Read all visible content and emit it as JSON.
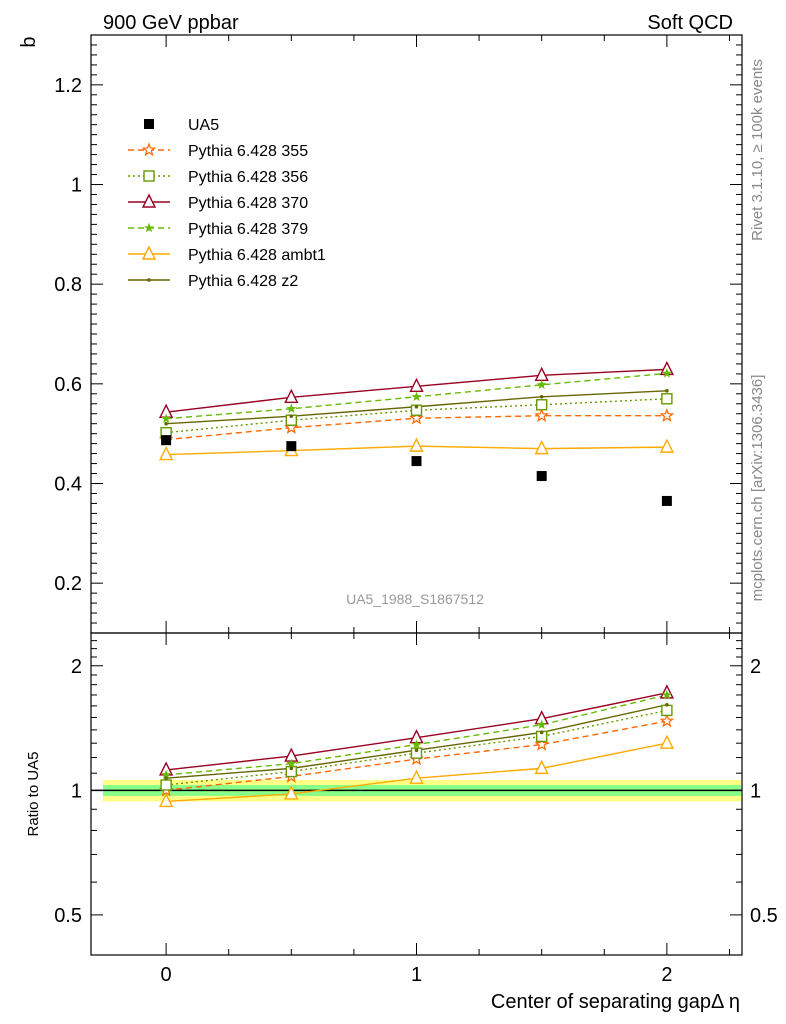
{
  "header": {
    "left_title": "900 GeV ppbar",
    "right_title": "Soft QCD"
  },
  "side_labels": {
    "rivet": "Rivet 3.1.10, ≥ 100k events",
    "mcplots": "mcplots.cern.ch [arXiv:1306.3436]"
  },
  "analysis_label": "UA5_1988_S1867512",
  "chart_data": [
    {
      "type": "line",
      "panel": "main",
      "ylabel": "b",
      "xlabel": "",
      "xlim": [
        -0.3,
        2.3
      ],
      "ylim": [
        0.1,
        1.3
      ],
      "x_ticks": [
        0,
        1,
        2
      ],
      "y_ticks": [
        0.2,
        0.4,
        0.6,
        0.8,
        1,
        1.2
      ],
      "y_tick_labels": [
        "0.2",
        "0.4",
        "0.6",
        "0.8",
        "1",
        "1.2"
      ],
      "legend_position": "top-left",
      "x": [
        0,
        0.5,
        1,
        1.5,
        2
      ],
      "data": {
        "name": "UA5",
        "values": [
          0.487,
          0.475,
          0.445,
          0.415,
          0.365
        ],
        "color": "#000000",
        "marker": "square"
      },
      "series": [
        {
          "name": "Pythia 6.428 355",
          "values": [
            0.488,
            0.512,
            0.531,
            0.536,
            0.536
          ],
          "color": "#ff6600",
          "dash": "6,4",
          "marker": "star"
        },
        {
          "name": "Pythia 6.428 356",
          "values": [
            0.502,
            0.527,
            0.547,
            0.558,
            0.57
          ],
          "color": "#669900",
          "dash": "2,3",
          "marker": "open-square"
        },
        {
          "name": "Pythia 6.428 370",
          "values": [
            0.543,
            0.573,
            0.595,
            0.617,
            0.629
          ],
          "color": "#990022",
          "dash": "",
          "marker": "open-triangle"
        },
        {
          "name": "Pythia 6.428 379",
          "values": [
            0.53,
            0.55,
            0.574,
            0.598,
            0.621
          ],
          "color": "#66bb00",
          "dash": "6,4",
          "marker": "small-star"
        },
        {
          "name": "Pythia 6.428 ambt1",
          "values": [
            0.458,
            0.466,
            0.475,
            0.47,
            0.473
          ],
          "color": "#ffaa00",
          "dash": "",
          "marker": "open-triangle"
        },
        {
          "name": "Pythia 6.428 z2",
          "values": [
            0.52,
            0.535,
            0.554,
            0.574,
            0.586
          ],
          "color": "#666600",
          "dash": "",
          "marker": "dot"
        }
      ]
    },
    {
      "type": "line",
      "panel": "ratio",
      "ylabel": "Ratio to UA5",
      "xlabel": "Center of separating gapΔ η",
      "xlim": [
        -0.3,
        2.3
      ],
      "ylim": [
        0.4,
        2.4
      ],
      "y_scale": "log",
      "x_ticks": [
        0,
        1,
        2
      ],
      "x_tick_labels": [
        "0",
        "1",
        "2"
      ],
      "y_ticks": [
        0.5,
        1,
        2
      ],
      "y_tick_labels": [
        "0.5",
        "1",
        "2"
      ],
      "band_1sigma": 0.03,
      "band_2sigma": 0.06,
      "x": [
        0,
        0.5,
        1,
        1.5,
        2
      ],
      "series": [
        {
          "name": "Pythia 6.428 355",
          "values": [
            1.0,
            1.08,
            1.19,
            1.29,
            1.47
          ],
          "color": "#ff6600",
          "dash": "6,4",
          "marker": "star"
        },
        {
          "name": "Pythia 6.428 356",
          "values": [
            1.03,
            1.11,
            1.23,
            1.35,
            1.56
          ],
          "color": "#669900",
          "dash": "2,3",
          "marker": "open-square"
        },
        {
          "name": "Pythia 6.428 370",
          "values": [
            1.12,
            1.21,
            1.34,
            1.49,
            1.72
          ],
          "color": "#990022",
          "dash": "",
          "marker": "open-triangle"
        },
        {
          "name": "Pythia 6.428 379",
          "values": [
            1.09,
            1.16,
            1.29,
            1.44,
            1.7
          ],
          "color": "#66bb00",
          "dash": "6,4",
          "marker": "small-star"
        },
        {
          "name": "Pythia 6.428 ambt1",
          "values": [
            0.94,
            0.98,
            1.07,
            1.13,
            1.3
          ],
          "color": "#ffaa00",
          "dash": "",
          "marker": "open-triangle"
        },
        {
          "name": "Pythia 6.428 z2",
          "values": [
            1.07,
            1.13,
            1.25,
            1.38,
            1.61
          ],
          "color": "#666600",
          "dash": "",
          "marker": "dot"
        }
      ]
    }
  ]
}
